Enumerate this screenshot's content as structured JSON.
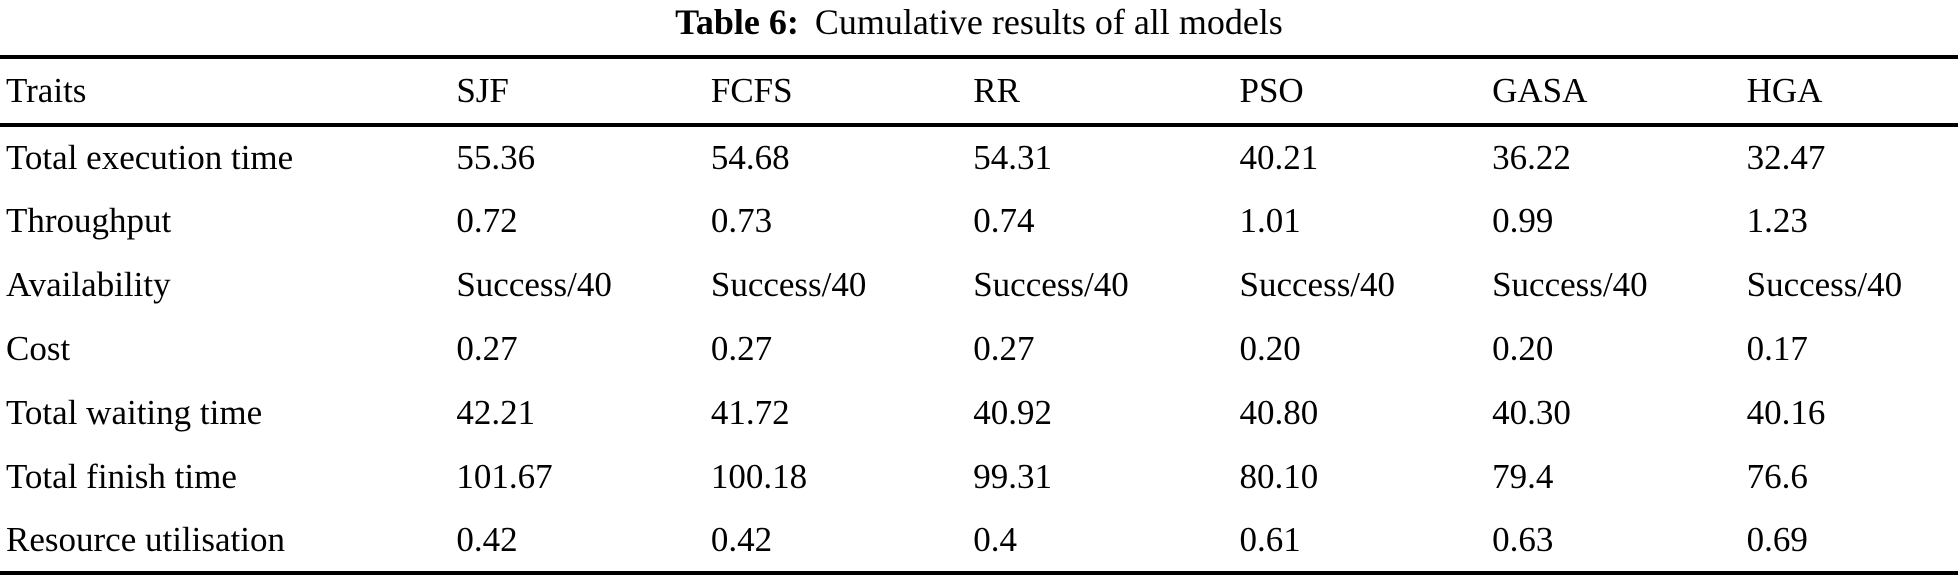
{
  "table": {
    "caption_label": "Table 6:",
    "caption_text": "Cumulative results of all models",
    "columns": [
      "Traits",
      "SJF",
      "FCFS",
      "RR",
      "PSO",
      "GASA",
      "HGA"
    ],
    "rows": [
      {
        "trait": "Total execution time",
        "values": [
          "55.36",
          "54.68",
          "54.31",
          "40.21",
          "36.22",
          "32.47"
        ]
      },
      {
        "trait": "Throughput",
        "values": [
          "0.72",
          "0.73",
          "0.74",
          "1.01",
          "0.99",
          "1.23"
        ]
      },
      {
        "trait": "Availability",
        "values": [
          "Success/40",
          "Success/40",
          "Success/40",
          "Success/40",
          "Success/40",
          "Success/40"
        ]
      },
      {
        "trait": "Cost",
        "values": [
          "0.27",
          "0.27",
          "0.27",
          "0.20",
          "0.20",
          "0.17"
        ]
      },
      {
        "trait": "Total waiting time",
        "values": [
          "42.21",
          "41.72",
          "40.92",
          "40.80",
          "40.30",
          "40.16"
        ]
      },
      {
        "trait": "Total finish time",
        "values": [
          "101.67",
          "100.18",
          "99.31",
          "80.10",
          "79.4",
          "76.6"
        ]
      },
      {
        "trait": "Resource utilisation",
        "values": [
          "0.42",
          "0.42",
          "0.4",
          "0.61",
          "0.63",
          "0.69"
        ]
      }
    ]
  },
  "colors": {
    "text": "#000000",
    "background": "#ffffff",
    "rule": "#000000"
  },
  "chart_data": {
    "type": "table",
    "title": "Table 6: Cumulative results of all models",
    "categories": [
      "SJF",
      "FCFS",
      "RR",
      "PSO",
      "GASA",
      "HGA"
    ],
    "series": [
      {
        "name": "Total execution time",
        "values": [
          55.36,
          54.68,
          54.31,
          40.21,
          36.22,
          32.47
        ]
      },
      {
        "name": "Throughput",
        "values": [
          0.72,
          0.73,
          0.74,
          1.01,
          0.99,
          1.23
        ]
      },
      {
        "name": "Availability",
        "values": [
          "Success/40",
          "Success/40",
          "Success/40",
          "Success/40",
          "Success/40",
          "Success/40"
        ]
      },
      {
        "name": "Cost",
        "values": [
          0.27,
          0.27,
          0.27,
          0.2,
          0.2,
          0.17
        ]
      },
      {
        "name": "Total waiting time",
        "values": [
          42.21,
          41.72,
          40.92,
          40.8,
          40.3,
          40.16
        ]
      },
      {
        "name": "Total finish time",
        "values": [
          101.67,
          100.18,
          99.31,
          80.1,
          79.4,
          76.6
        ]
      },
      {
        "name": "Resource utilisation",
        "values": [
          0.42,
          0.42,
          0.4,
          0.61,
          0.63,
          0.69
        ]
      }
    ]
  }
}
